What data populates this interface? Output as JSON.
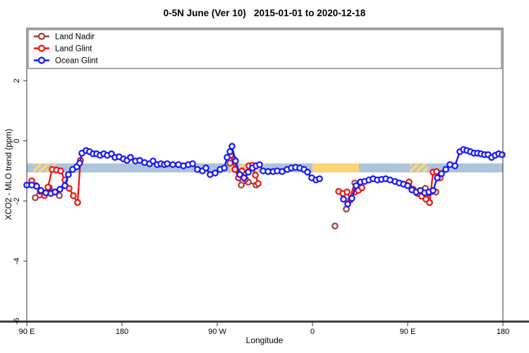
{
  "title": "0-5N June (Ver 10)   2015-01-01 to 2020-12-18",
  "chart_data": {
    "type": "line",
    "title": "0-5N June (Ver 10)   2015-01-01 to 2020-12-18",
    "xlabel": "Longitude",
    "ylabel": "XCO2 - MLO trend (ppm)",
    "xlim": [
      90,
      540
    ],
    "ylim": [
      -6,
      3.7
    ],
    "x_ticks": [
      {
        "lon": 90,
        "label": "90 E"
      },
      {
        "lon": 180,
        "label": "180"
      },
      {
        "lon": 270,
        "label": "90 W"
      },
      {
        "lon": 360,
        "label": "0"
      },
      {
        "lon": 450,
        "label": "90 E"
      },
      {
        "lon": 540,
        "label": "180"
      }
    ],
    "y_ticks": [
      {
        "value": 2,
        "label": "2"
      },
      {
        "value": 0,
        "label": "0"
      },
      {
        "value": -2,
        "label": "-2"
      },
      {
        "value": -4,
        "label": "-4"
      },
      {
        "value": -6,
        "label": "-6"
      }
    ],
    "grid": false,
    "legend_position": "top-inside-box",
    "legend": [
      {
        "name": "Land Nadir",
        "color": "#9e3d3d"
      },
      {
        "name": "Land Glint",
        "color": "#ee1111"
      },
      {
        "name": "Ocean Glint",
        "color": "#1515ff"
      }
    ],
    "reference_band": {
      "from": -0.75,
      "to": -1.05,
      "color": "#aec3dc"
    },
    "highlight_segments": [
      {
        "from_lon": 96,
        "to_lon": 118,
        "style": "hatched",
        "color": "#fbd678"
      },
      {
        "from_lon": 282,
        "to_lon": 315,
        "style": "hatched",
        "color": "#fbd678"
      },
      {
        "from_lon": 360,
        "to_lon": 404,
        "style": "solid",
        "color": "#fbd678"
      },
      {
        "from_lon": 452,
        "to_lon": 469,
        "style": "hatched",
        "color": "#fbd678"
      }
    ],
    "series": [
      {
        "name": "Land Nadir",
        "color": "#9e3d3d",
        "segments": [
          [
            [
              98,
              -1.89
            ],
            [
              102,
              -1.8
            ],
            [
              106.7,
              -1.73
            ],
            [
              111.3,
              -1.56
            ],
            [
              116,
              -1.7
            ],
            [
              120.7,
              -1.82
            ]
          ],
          [
            [
              282,
              -0.74
            ],
            [
              286,
              -0.62
            ],
            [
              292.7,
              -1.47
            ],
            [
              299.3,
              -1.37
            ],
            [
              306.7,
              -1.47
            ]
          ],
          [
            [
              381.3,
              -2.83
            ]
          ],
          [
            [
              392,
              -2.27
            ],
            [
              400,
              -1.4
            ]
          ],
          [
            [
              466.7,
              -1.58
            ],
            [
              470,
              -1.75
            ],
            [
              473.3,
              -1.68
            ],
            [
              476.7,
              -1.7
            ]
          ]
        ]
      },
      {
        "name": "Land Glint",
        "color": "#ee1111",
        "segments": [
          [
            [
              94.7,
              -1.33
            ],
            [
              98.7,
              -1.49
            ],
            [
              102.7,
              -1.68
            ],
            [
              106.7,
              -1.82
            ],
            [
              110,
              -1.54
            ],
            [
              114,
              -0.95
            ],
            [
              118,
              -0.97
            ],
            [
              122,
              -1.0
            ],
            [
              126,
              -1.3
            ],
            [
              130,
              -1.58
            ],
            [
              134,
              -1.82
            ],
            [
              138,
              -2.05
            ],
            [
              140.7,
              -0.65
            ]
          ],
          [
            [
              282.7,
              -0.48
            ],
            [
              286.7,
              -0.95
            ],
            [
              290,
              -1.23
            ],
            [
              293.3,
              -1.0
            ],
            [
              296.7,
              -1.28
            ],
            [
              300,
              -0.83
            ],
            [
              303.3,
              -0.81
            ],
            [
              306,
              -1.14
            ],
            [
              308.7,
              -1.42
            ]
          ],
          [
            [
              384.7,
              -1.68
            ],
            [
              388.7,
              -1.75
            ],
            [
              392.7,
              -1.7
            ],
            [
              396,
              -1.96
            ],
            [
              400,
              -1.7
            ],
            [
              403.3,
              -1.65
            ],
            [
              406.7,
              -1.56
            ]
          ],
          [
            [
              451.3,
              -1.37
            ],
            [
              455.3,
              -1.61
            ],
            [
              459.3,
              -1.75
            ],
            [
              463.3,
              -1.84
            ],
            [
              467.3,
              -1.94
            ],
            [
              470.7,
              -2.05
            ],
            [
              474,
              -1.04
            ],
            [
              477.3,
              -1.02
            ],
            [
              480.7,
              -1.23
            ]
          ]
        ]
      },
      {
        "name": "Ocean Glint",
        "color": "#1515ff",
        "segments": [
          [
            [
              90,
              -1.47
            ],
            [
              94.7,
              -1.47
            ],
            [
              99.3,
              -1.51
            ],
            [
              103.3,
              -1.65
            ],
            [
              108,
              -1.73
            ],
            [
              112.7,
              -1.75
            ],
            [
              116.7,
              -1.7
            ],
            [
              121.3,
              -1.61
            ],
            [
              126,
              -1.49
            ],
            [
              129.3,
              -1.12
            ],
            [
              133.3,
              -0.95
            ],
            [
              137.3,
              -0.86
            ],
            [
              140,
              -0.74
            ],
            [
              142,
              -0.41
            ],
            [
              146,
              -0.32
            ],
            [
              149.3,
              -0.36
            ],
            [
              152.7,
              -0.43
            ],
            [
              156,
              -0.43
            ],
            [
              159.3,
              -0.48
            ],
            [
              162.7,
              -0.43
            ],
            [
              166,
              -0.48
            ],
            [
              170,
              -0.43
            ],
            [
              173.3,
              -0.55
            ],
            [
              177.3,
              -0.53
            ],
            [
              181.3,
              -0.6
            ],
            [
              184.7,
              -0.65
            ],
            [
              188,
              -0.55
            ],
            [
              192.7,
              -0.67
            ],
            [
              196.7,
              -0.65
            ],
            [
              201.3,
              -0.72
            ],
            [
              206,
              -0.76
            ],
            [
              209.3,
              -0.67
            ],
            [
              213.3,
              -0.79
            ],
            [
              216.7,
              -0.76
            ],
            [
              220,
              -0.79
            ],
            [
              222.7,
              -0.76
            ],
            [
              228,
              -0.79
            ],
            [
              233.3,
              -0.79
            ],
            [
              238,
              -0.83
            ],
            [
              242.7,
              -0.79
            ],
            [
              246.7,
              -0.76
            ],
            [
              251.3,
              -0.95
            ],
            [
              256,
              -1.0
            ],
            [
              259.3,
              -0.9
            ],
            [
              263.3,
              -1.12
            ],
            [
              268,
              -1.07
            ],
            [
              272.7,
              -0.95
            ],
            [
              276.7,
              -0.9
            ],
            [
              279.3,
              -0.55
            ],
            [
              282,
              -0.36
            ],
            [
              284,
              -0.18
            ],
            [
              287.3,
              -0.67
            ],
            [
              291.3,
              -1.12
            ],
            [
              295.3,
              -1.23
            ],
            [
              299.3,
              -1.04
            ],
            [
              303.3,
              -0.9
            ],
            [
              306.7,
              -0.83
            ],
            [
              310,
              -0.79
            ],
            [
              313.3,
              -1.0
            ],
            [
              318,
              -1.02
            ],
            [
              322.7,
              -1.02
            ],
            [
              326.7,
              -1.0
            ],
            [
              331.3,
              -1.02
            ],
            [
              336,
              -0.95
            ],
            [
              340,
              -0.9
            ],
            [
              344,
              -0.88
            ],
            [
              348,
              -0.9
            ],
            [
              352,
              -0.95
            ],
            [
              355.3,
              -1.04
            ],
            [
              359.3,
              -1.23
            ],
            [
              363.3,
              -1.3
            ],
            [
              366.7,
              -1.26
            ]
          ],
          [
            [
              389.3,
              -1.94
            ],
            [
              393.3,
              -2.1
            ],
            [
              397.3,
              -1.91
            ],
            [
              401.3,
              -1.49
            ],
            [
              405.3,
              -1.37
            ],
            [
              409.3,
              -1.35
            ],
            [
              413.3,
              -1.3
            ],
            [
              417.3,
              -1.26
            ],
            [
              421.3,
              -1.3
            ],
            [
              425.3,
              -1.28
            ],
            [
              429.3,
              -1.26
            ],
            [
              433.3,
              -1.3
            ],
            [
              438,
              -1.35
            ],
            [
              442,
              -1.4
            ],
            [
              446,
              -1.44
            ],
            [
              450,
              -1.49
            ],
            [
              454,
              -1.63
            ],
            [
              458,
              -1.7
            ],
            [
              462,
              -1.65
            ],
            [
              466,
              -1.73
            ],
            [
              470,
              -1.7
            ],
            [
              474,
              -1.65
            ],
            [
              478,
              -1.23
            ],
            [
              482,
              -1.09
            ],
            [
              486,
              -0.95
            ],
            [
              490,
              -0.79
            ],
            [
              494.7,
              -0.83
            ],
            [
              499.3,
              -0.36
            ],
            [
              502.7,
              -0.29
            ],
            [
              506,
              -0.32
            ],
            [
              509.3,
              -0.36
            ],
            [
              512.7,
              -0.41
            ],
            [
              516,
              -0.41
            ],
            [
              519.3,
              -0.43
            ],
            [
              522.7,
              -0.46
            ],
            [
              526,
              -0.46
            ],
            [
              529.3,
              -0.55
            ],
            [
              532.7,
              -0.48
            ],
            [
              536,
              -0.43
            ],
            [
              539.3,
              -0.46
            ]
          ]
        ]
      }
    ]
  }
}
